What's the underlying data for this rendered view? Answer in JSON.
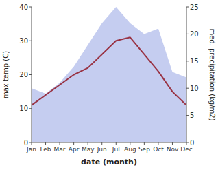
{
  "chart_data": {
    "type": "line",
    "categories": [
      "Jan",
      "Feb",
      "Mar",
      "Apr",
      "May",
      "Jun",
      "Jul",
      "Aug",
      "Sep",
      "Oct",
      "Nov",
      "Dec"
    ],
    "xlabel": "date (month)",
    "ylabel": "max temp (C)",
    "y2label": "med. precipitation (kg/m2)",
    "ylim": [
      0,
      40
    ],
    "yticks": [
      0,
      10,
      20,
      30,
      40
    ],
    "y2lim": [
      0,
      25
    ],
    "y2ticks": [
      0,
      5,
      10,
      15,
      20,
      25
    ],
    "grid": false,
    "series": [
      {
        "type": "area",
        "axis": "y2",
        "color": "#c5cdf0",
        "values": [
          10,
          9,
          11,
          14,
          18,
          22,
          25,
          22,
          20,
          21,
          13,
          12
        ]
      },
      {
        "type": "line",
        "color": "#993344",
        "values": [
          11,
          14,
          17,
          20,
          22,
          26,
          30,
          31,
          26,
          21,
          15,
          11
        ]
      }
    ]
  }
}
